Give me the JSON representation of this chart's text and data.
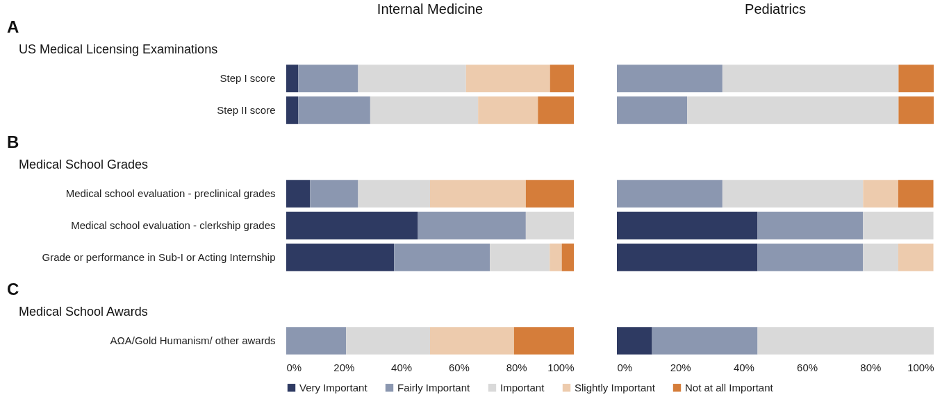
{
  "chart_data": [
    {
      "type": "bar",
      "orientation": "horizontal",
      "stacked": true,
      "title": "Internal Medicine",
      "annotations": [
        "A",
        "US Medical Licensing Examinations"
      ],
      "categories": [
        "Step I score",
        "Step II score"
      ],
      "xlim": [
        0,
        100
      ],
      "xticks": [
        {
          "value": 0,
          "label": "0%"
        },
        {
          "value": 20,
          "label": "20%"
        },
        {
          "value": 40,
          "label": "40%"
        },
        {
          "value": 60,
          "label": "60%"
        },
        {
          "value": 80,
          "label": "80%"
        },
        {
          "value": 100,
          "label": "100%"
        }
      ],
      "tick_labels": "y",
      "legend": "bottom",
      "series": [
        {
          "name": "Very Important",
          "color": "#2e3a62",
          "values": [
            4.2,
            4.2
          ]
        },
        {
          "name": "Fairly Important",
          "color": "#8b97b0",
          "values": [
            20.8,
            25
          ]
        },
        {
          "name": "Important",
          "color": "#d9d9d9",
          "values": [
            37.5,
            37.5
          ]
        },
        {
          "name": "Slightly Important",
          "color": "#edcbad",
          "values": [
            29.2,
            20.8
          ]
        },
        {
          "name": "Not at all Important",
          "color": "#d57d3a",
          "values": [
            8.3,
            12.5
          ]
        }
      ]
    },
    {
      "type": "bar",
      "orientation": "horizontal",
      "stacked": true,
      "title": "Pediatrics",
      "categories": [
        null,
        null
      ],
      "xlim": [
        0,
        100
      ],
      "xticks": [
        {
          "value": 0,
          "label": "0%"
        },
        {
          "value": 20,
          "label": "20%"
        },
        {
          "value": 40,
          "label": "40%"
        },
        {
          "value": 60,
          "label": "60%"
        },
        {
          "value": 80,
          "label": "80%"
        },
        {
          "value": 100,
          "label": "100%"
        }
      ],
      "tick_labels": false,
      "legend": "bottom",
      "series": [
        {
          "name": "Very Important",
          "color": "#2e3a62",
          "values": [
            0,
            0
          ]
        },
        {
          "name": "Fairly Important",
          "color": "#8b97b0",
          "values": [
            33.3,
            22.2
          ]
        },
        {
          "name": "Important",
          "color": "#d9d9d9",
          "values": [
            55.6,
            66.7
          ]
        },
        {
          "name": "Slightly Important",
          "color": "#edcbad",
          "values": [
            0,
            0
          ]
        },
        {
          "name": "Not at all Important",
          "color": "#d57d3a",
          "values": [
            11.1,
            11.1
          ]
        }
      ]
    },
    {
      "type": "bar",
      "orientation": "horizontal",
      "stacked": true,
      "annotations": [
        "B",
        "Medical School Grades"
      ],
      "categories": [
        "Medical school evaluation - preclinical grades",
        "Medical school evaluation - clerkship grades",
        "Grade or performance in Sub-I or Acting Internship"
      ],
      "xlim": [
        0,
        100
      ],
      "xticks": [
        {
          "value": 0,
          "label": "0%"
        },
        {
          "value": 20,
          "label": "20%"
        },
        {
          "value": 40,
          "label": "40%"
        },
        {
          "value": 60,
          "label": "60%"
        },
        {
          "value": 80,
          "label": "80%"
        },
        {
          "value": 100,
          "label": "100%"
        }
      ],
      "tick_labels": "y",
      "legend": "bottom",
      "series": [
        {
          "name": "Very Important",
          "color": "#2e3a62",
          "values": [
            8.3,
            45.8,
            37.5
          ]
        },
        {
          "name": "Fairly Important",
          "color": "#8b97b0",
          "values": [
            16.7,
            37.5,
            33.3
          ]
        },
        {
          "name": "Important",
          "color": "#d9d9d9",
          "values": [
            25,
            16.7,
            20.8
          ]
        },
        {
          "name": "Slightly Important",
          "color": "#edcbad",
          "values": [
            33.3,
            0,
            4.2
          ]
        },
        {
          "name": "Not at all Important",
          "color": "#d57d3a",
          "values": [
            16.7,
            0,
            4.2
          ]
        }
      ]
    },
    {
      "type": "bar",
      "orientation": "horizontal",
      "stacked": true,
      "categories": [
        null,
        null,
        null
      ],
      "xlim": [
        0,
        100
      ],
      "xticks": [
        {
          "value": 0,
          "label": "0%"
        },
        {
          "value": 20,
          "label": "20%"
        },
        {
          "value": 40,
          "label": "40%"
        },
        {
          "value": 60,
          "label": "60%"
        },
        {
          "value": 80,
          "label": "80%"
        },
        {
          "value": 100,
          "label": "100%"
        }
      ],
      "tick_labels": false,
      "legend": "bottom",
      "series": [
        {
          "name": "Very Important",
          "color": "#2e3a62",
          "values": [
            0,
            44.4,
            44.4
          ]
        },
        {
          "name": "Fairly Important",
          "color": "#8b97b0",
          "values": [
            33.3,
            33.3,
            33.3
          ]
        },
        {
          "name": "Important",
          "color": "#d9d9d9",
          "values": [
            44.4,
            22.2,
            11.1
          ]
        },
        {
          "name": "Slightly Important",
          "color": "#edcbad",
          "values": [
            11.1,
            0,
            11.1
          ]
        },
        {
          "name": "Not at all Important",
          "color": "#d57d3a",
          "values": [
            11.1,
            0,
            0
          ]
        }
      ]
    },
    {
      "type": "bar",
      "orientation": "horizontal",
      "stacked": true,
      "annotations": [
        "C",
        "Medical School Awards"
      ],
      "categories": [
        "AΩA/Gold Humanism/ other awards"
      ],
      "xlim": [
        0,
        100
      ],
      "xticks": [
        {
          "value": 0,
          "label": "0%"
        },
        {
          "value": 20,
          "label": "20%"
        },
        {
          "value": 40,
          "label": "40%"
        },
        {
          "value": 60,
          "label": "60%"
        },
        {
          "value": 80,
          "label": "80%"
        },
        {
          "value": 100,
          "label": "100%"
        }
      ],
      "legend": "bottom",
      "series": [
        {
          "name": "Very Important",
          "color": "#2e3a62",
          "values": [
            0
          ]
        },
        {
          "name": "Fairly Important",
          "color": "#8b97b0",
          "values": [
            20.8
          ]
        },
        {
          "name": "Important",
          "color": "#d9d9d9",
          "values": [
            29.2
          ]
        },
        {
          "name": "Slightly Important",
          "color": "#edcbad",
          "values": [
            29.2
          ]
        },
        {
          "name": "Not at all Important",
          "color": "#d57d3a",
          "values": [
            20.8
          ]
        }
      ]
    },
    {
      "type": "bar",
      "orientation": "horizontal",
      "stacked": true,
      "categories": [
        null
      ],
      "xlim": [
        0,
        100
      ],
      "xticks": [
        {
          "value": 0,
          "label": "0%"
        },
        {
          "value": 20,
          "label": "20%"
        },
        {
          "value": 40,
          "label": "40%"
        },
        {
          "value": 60,
          "label": "60%"
        },
        {
          "value": 80,
          "label": "80%"
        },
        {
          "value": 100,
          "label": "100%"
        }
      ],
      "tick_labels": "x",
      "legend": "bottom",
      "series": [
        {
          "name": "Very Important",
          "color": "#2e3a62",
          "values": [
            11.1
          ]
        },
        {
          "name": "Fairly Important",
          "color": "#8b97b0",
          "values": [
            33.3
          ]
        },
        {
          "name": "Important",
          "color": "#d9d9d9",
          "values": [
            55.6
          ]
        },
        {
          "name": "Slightly Important",
          "color": "#edcbad",
          "values": [
            0
          ]
        },
        {
          "name": "Not at all Important",
          "color": "#d57d3a",
          "values": [
            0
          ]
        }
      ]
    }
  ]
}
